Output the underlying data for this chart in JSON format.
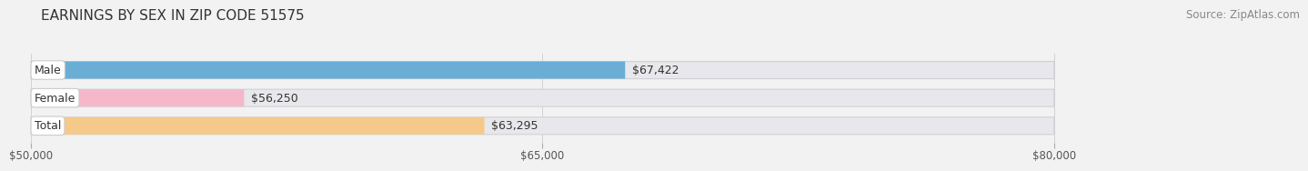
{
  "title": "EARNINGS BY SEX IN ZIP CODE 51575",
  "source": "Source: ZipAtlas.com",
  "categories": [
    "Male",
    "Female",
    "Total"
  ],
  "values": [
    67422,
    56250,
    63295
  ],
  "value_labels": [
    "$67,422",
    "$56,250",
    "$63,295"
  ],
  "bar_colors": [
    "#6aaed6",
    "#f4b8ca",
    "#f5c98a"
  ],
  "bar_edge_colors": [
    "#b0cde8",
    "#f0c8d8",
    "#f0d8a8"
  ],
  "xmin": 50000,
  "xmax": 80000,
  "xticks": [
    50000,
    65000,
    80000
  ],
  "xtick_labels": [
    "$50,000",
    "$65,000",
    "$80,000"
  ],
  "background_color": "#f2f2f2",
  "bar_bg_color": "#e8e8ec",
  "title_fontsize": 11,
  "label_fontsize": 9,
  "value_fontsize": 9,
  "source_fontsize": 8.5
}
